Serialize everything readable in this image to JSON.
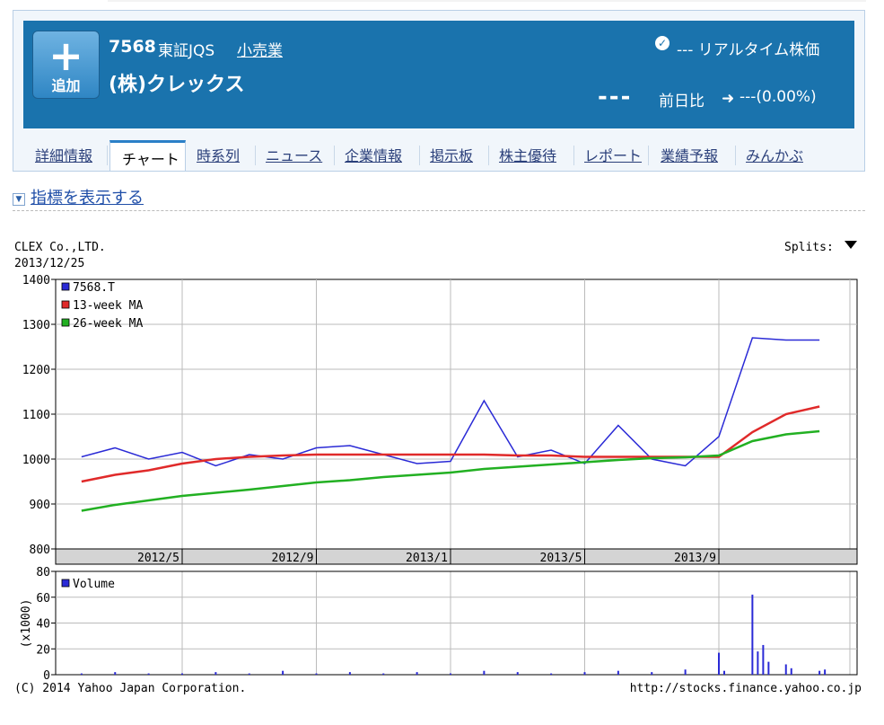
{
  "header": {
    "add_button_label": "追加",
    "add_button_symbol": "+",
    "stock_code": "7568",
    "market": "東証JQS",
    "sector": "小売業",
    "company_name": "(株)クレックス",
    "realtime_label": "--- リアルタイム株価",
    "price": "---",
    "prev_day_label": "前日比",
    "change_text": "---(0.00%)",
    "band_color": "#1a73ad"
  },
  "tabs": [
    {
      "label": "詳細情報",
      "active": false
    },
    {
      "label": "チャート",
      "active": true
    },
    {
      "label": "時系列",
      "active": false
    },
    {
      "label": "ニュース",
      "active": false
    },
    {
      "label": "企業情報",
      "active": false
    },
    {
      "label": "掲示板",
      "active": false
    },
    {
      "label": "株主優待",
      "active": false
    },
    {
      "label": "レポート",
      "active": false
    },
    {
      "label": "業績予報",
      "active": false
    },
    {
      "label": "みんかぶ",
      "active": false
    }
  ],
  "indicator_toggle": "指標を表示する",
  "chart_header": {
    "company": "CLEX Co.,LTD.",
    "date": "2013/12/25",
    "splits": "Splits:"
  },
  "chart_footer": {
    "copyright": "(C) 2014 Yahoo Japan Corporation.",
    "url": "http://stocks.finance.yahoo.co.jp"
  },
  "chart_data": [
    {
      "type": "line",
      "xlabel": "",
      "ylabel": "",
      "ylim": [
        800,
        1400
      ],
      "yticks": [
        800,
        900,
        1000,
        1100,
        1200,
        1300,
        1400
      ],
      "xticks": [
        "2012/5",
        "2012/9",
        "2013/1",
        "2013/5",
        "2013/9"
      ],
      "grid": true,
      "legend": "top-left",
      "x": [
        "2012/2",
        "2012/3",
        "2012/4",
        "2012/5",
        "2012/6",
        "2012/7",
        "2012/8",
        "2012/9",
        "2012/10",
        "2012/11",
        "2012/12",
        "2013/1",
        "2013/2",
        "2013/3",
        "2013/4",
        "2013/5",
        "2013/6",
        "2013/7",
        "2013/8",
        "2013/9",
        "2013/10",
        "2013/11",
        "2013/12"
      ],
      "series": [
        {
          "name": "7568.T",
          "color": "#2a2ad6",
          "values": [
            1005,
            1025,
            1000,
            1015,
            985,
            1010,
            1000,
            1025,
            1030,
            1010,
            990,
            995,
            1130,
            1005,
            1020,
            990,
            1075,
            1000,
            985,
            1050,
            1270,
            1265,
            1265
          ]
        },
        {
          "name": "13-week MA",
          "color": "#e02a2a",
          "values": [
            950,
            965,
            975,
            990,
            1000,
            1005,
            1008,
            1010,
            1010,
            1010,
            1010,
            1010,
            1010,
            1008,
            1008,
            1005,
            1005,
            1005,
            1005,
            1005,
            1060,
            1100,
            1117
          ]
        },
        {
          "name": "26-week MA",
          "color": "#22b022",
          "values": [
            885,
            898,
            908,
            918,
            925,
            932,
            940,
            948,
            953,
            960,
            965,
            970,
            978,
            983,
            988,
            993,
            998,
            1002,
            1004,
            1008,
            1040,
            1055,
            1062
          ]
        }
      ]
    },
    {
      "type": "bar",
      "ylabel": "(x1000)",
      "ylim": [
        0,
        80
      ],
      "yticks": [
        0,
        20,
        40,
        60,
        80
      ],
      "legend": "top-left",
      "series": [
        {
          "name": "Volume",
          "color": "#2a2ad6",
          "points": [
            {
              "x": "2012/2",
              "v": 1
            },
            {
              "x": "2012/3",
              "v": 2
            },
            {
              "x": "2012/4",
              "v": 1
            },
            {
              "x": "2012/5",
              "v": 1
            },
            {
              "x": "2012/6",
              "v": 2
            },
            {
              "x": "2012/7",
              "v": 1
            },
            {
              "x": "2012/8",
              "v": 3
            },
            {
              "x": "2012/9",
              "v": 1
            },
            {
              "x": "2012/10",
              "v": 2
            },
            {
              "x": "2012/11",
              "v": 1
            },
            {
              "x": "2012/12",
              "v": 2
            },
            {
              "x": "2013/1",
              "v": 1
            },
            {
              "x": "2013/2",
              "v": 3
            },
            {
              "x": "2013/3",
              "v": 2
            },
            {
              "x": "2013/4",
              "v": 1
            },
            {
              "x": "2013/5",
              "v": 2
            },
            {
              "x": "2013/6",
              "v": 3
            },
            {
              "x": "2013/7",
              "v": 2
            },
            {
              "x": "2013/8",
              "v": 4
            },
            {
              "x": "2013/9",
              "v": 17
            },
            {
              "x": "2013/9",
              "v": 3
            },
            {
              "x": "2013/10",
              "v": 62
            },
            {
              "x": "2013/10",
              "v": 18
            },
            {
              "x": "2013/10",
              "v": 23
            },
            {
              "x": "2013/10",
              "v": 10
            },
            {
              "x": "2013/11",
              "v": 8
            },
            {
              "x": "2013/11",
              "v": 5
            },
            {
              "x": "2013/12",
              "v": 3
            },
            {
              "x": "2013/12",
              "v": 4
            }
          ]
        }
      ]
    }
  ]
}
